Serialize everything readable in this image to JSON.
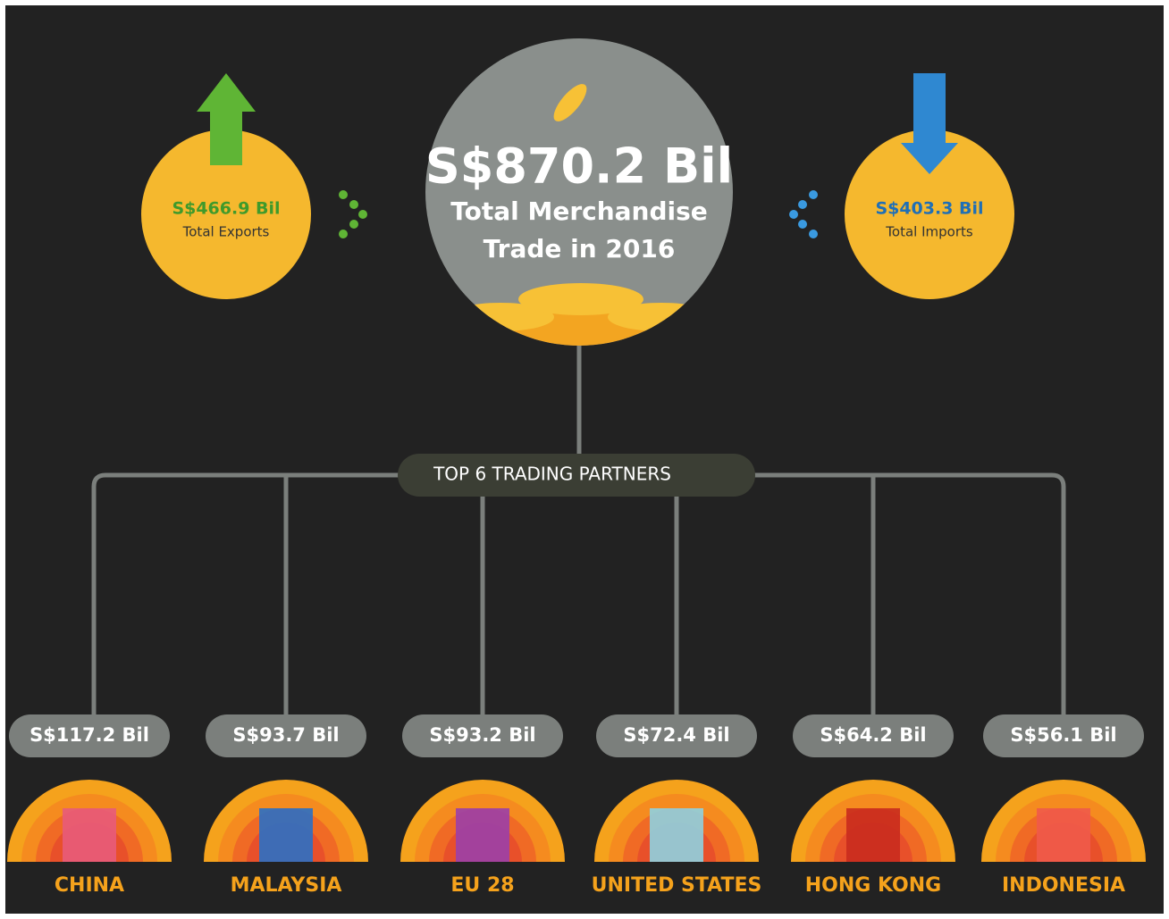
{
  "center": {
    "value": "S$870.2 Bil",
    "line1": "Total Merchandise",
    "line2": "Trade in 2016"
  },
  "exports": {
    "value": "S$466.9 Bil",
    "label": "Total Exports"
  },
  "imports": {
    "value": "S$403.3 Bil",
    "label": "Total Imports"
  },
  "partners_title": "TOP 6 TRADING PARTNERS",
  "partners": [
    {
      "value": "S$117.2 Bil",
      "name": "CHINA"
    },
    {
      "value": "S$93.7 Bil",
      "name": "MALAYSIA"
    },
    {
      "value": "S$93.2 Bil",
      "name": "EU 28"
    },
    {
      "value": "S$72.4 Bil",
      "name": "UNITED STATES"
    },
    {
      "value": "S$64.2 Bil",
      "name": "HONG KONG"
    },
    {
      "value": "S$56.1 Bil",
      "name": "INDONESIA"
    }
  ]
}
